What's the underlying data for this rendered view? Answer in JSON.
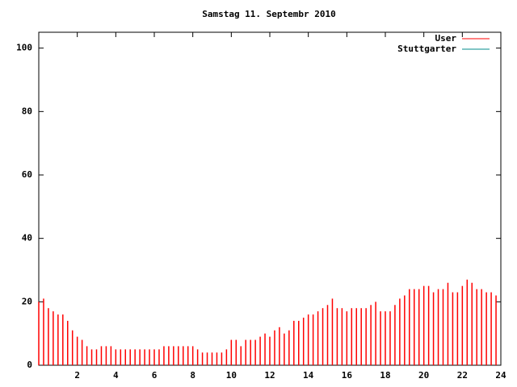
{
  "chart_data": {
    "type": "impulse",
    "title": "Samstag 11. Septembr 2010",
    "x": [
      0,
      0.25,
      0.5,
      0.75,
      1,
      1.25,
      1.5,
      1.75,
      2,
      2.25,
      2.5,
      2.75,
      3,
      3.25,
      3.5,
      3.75,
      4,
      4.25,
      4.5,
      4.75,
      5,
      5.25,
      5.5,
      5.75,
      6,
      6.25,
      6.5,
      6.75,
      7,
      7.25,
      7.5,
      7.75,
      8,
      8.25,
      8.5,
      8.75,
      9,
      9.25,
      9.5,
      9.75,
      10,
      10.25,
      10.5,
      10.75,
      11,
      11.25,
      11.5,
      11.75,
      12,
      12.25,
      12.5,
      12.75,
      13,
      13.25,
      13.5,
      13.75,
      14,
      14.25,
      14.5,
      14.75,
      15,
      15.25,
      15.5,
      15.75,
      16,
      16.25,
      16.5,
      16.75,
      17,
      17.25,
      17.5,
      17.75,
      18,
      18.25,
      18.5,
      18.75,
      19,
      19.25,
      19.5,
      19.75,
      20,
      20.25,
      20.5,
      20.75,
      21,
      21.25,
      21.5,
      21.75,
      22,
      22.25,
      22.5,
      22.75,
      23,
      23.25,
      23.5,
      23.75
    ],
    "series": [
      {
        "name": "User",
        "color": "#ff0000",
        "values": [
          20,
          21,
          18,
          17,
          16,
          16,
          14,
          11,
          9,
          8,
          6,
          5,
          5,
          6,
          6,
          6,
          5,
          5,
          5,
          5,
          5,
          5,
          5,
          5,
          5,
          5,
          6,
          6,
          6,
          6,
          6,
          6,
          6,
          5,
          4,
          4,
          4,
          4,
          4,
          5,
          8,
          8,
          6,
          8,
          8,
          8,
          9,
          10,
          9,
          11,
          12,
          10,
          11,
          14,
          14,
          15,
          16,
          16,
          17,
          18,
          19,
          21,
          18,
          18,
          17,
          18,
          18,
          18,
          18,
          19,
          20,
          17,
          17,
          17,
          19,
          21,
          22,
          24,
          24,
          24,
          25,
          25,
          23,
          24,
          24,
          26,
          23,
          23,
          25,
          27,
          26,
          24,
          24,
          23,
          23,
          22
        ]
      },
      {
        "name": "Stuttgarter",
        "color": "#008b8b",
        "values": [
          null,
          null,
          null,
          null,
          null,
          null,
          null,
          null,
          null,
          null,
          null,
          null,
          null,
          null,
          null,
          null,
          null,
          null,
          null,
          null,
          null,
          null,
          null,
          null,
          null,
          null,
          null,
          null,
          null,
          null,
          null,
          null,
          null,
          null,
          null,
          null,
          null,
          null,
          null,
          null,
          null,
          null,
          null,
          null,
          null,
          null,
          null,
          null,
          null,
          null,
          null,
          null,
          null,
          null,
          null,
          null,
          null,
          null,
          null,
          null,
          null,
          null,
          null,
          null,
          null,
          null,
          null,
          null,
          null,
          null,
          null,
          null,
          null,
          null,
          null,
          null,
          null,
          null,
          null,
          null,
          null,
          null,
          null,
          null,
          null,
          null,
          null,
          null,
          null,
          null,
          null,
          null,
          null,
          null,
          null,
          null
        ]
      }
    ],
    "xlim": [
      0,
      24
    ],
    "xticks": [
      2,
      4,
      6,
      8,
      10,
      12,
      14,
      16,
      18,
      20,
      22,
      24
    ],
    "ylim": [
      0,
      105
    ],
    "yticks": [
      0,
      20,
      40,
      60,
      80,
      100
    ],
    "legend": "top-right"
  }
}
